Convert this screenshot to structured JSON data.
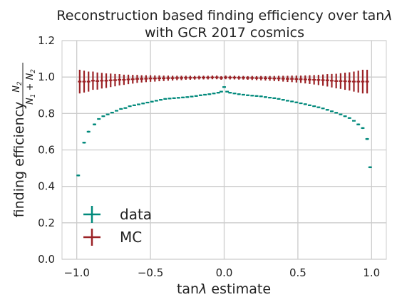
{
  "chart_data": {
    "type": "scatter",
    "title_line1_prefix": "Reconstruction based finding efficiency over tan",
    "title_line1_symbol": "λ",
    "title_line2": "with GCR 2017 cosmics",
    "xlabel_prefix": "tan",
    "xlabel_symbol": "λ",
    "xlabel_suffix": " estimate",
    "ylabel_text": "finding efficiency",
    "ylabel_num": "N",
    "ylabel_num_sub": "2",
    "ylabel_den_n1": "N",
    "ylabel_den_n1_sub": "1",
    "ylabel_den_plus": " + ",
    "ylabel_den_n2": "N",
    "ylabel_den_n2_sub": "2",
    "xlim": [
      -1.1,
      1.1
    ],
    "ylim": [
      0.0,
      1.2
    ],
    "xticks": [
      -1.0,
      -0.5,
      0.0,
      0.5,
      1.0
    ],
    "xtick_labels": [
      "−1.0",
      "−0.5",
      "0.0",
      "0.5",
      "1.0"
    ],
    "yticks": [
      0.0,
      0.2,
      0.4,
      0.6,
      0.8,
      1.0,
      1.2
    ],
    "ytick_labels": [
      "0.0",
      "0.2",
      "0.4",
      "0.6",
      "0.8",
      "1.0",
      "1.2"
    ],
    "grid": true,
    "legend_position": "lower-left",
    "series": [
      {
        "name": "data",
        "color": "#00897b",
        "marker": "errorbar",
        "x": [
          -0.99,
          -0.95,
          -0.92,
          -0.88,
          -0.85,
          -0.82,
          -0.79,
          -0.76,
          -0.73,
          -0.7,
          -0.67,
          -0.64,
          -0.61,
          -0.58,
          -0.55,
          -0.52,
          -0.49,
          -0.46,
          -0.43,
          -0.4,
          -0.37,
          -0.34,
          -0.31,
          -0.28,
          -0.25,
          -0.22,
          -0.19,
          -0.16,
          -0.13,
          -0.1,
          -0.07,
          -0.04,
          -0.02,
          0.0,
          0.02,
          0.04,
          0.07,
          0.1,
          0.13,
          0.16,
          0.19,
          0.22,
          0.25,
          0.28,
          0.31,
          0.34,
          0.37,
          0.4,
          0.43,
          0.46,
          0.49,
          0.52,
          0.55,
          0.58,
          0.61,
          0.64,
          0.67,
          0.7,
          0.73,
          0.76,
          0.79,
          0.82,
          0.85,
          0.88,
          0.91,
          0.94,
          0.97,
          0.99
        ],
        "y": [
          0.46,
          0.64,
          0.7,
          0.74,
          0.77,
          0.785,
          0.795,
          0.805,
          0.815,
          0.825,
          0.83,
          0.84,
          0.845,
          0.85,
          0.855,
          0.86,
          0.865,
          0.87,
          0.875,
          0.88,
          0.882,
          0.884,
          0.886,
          0.888,
          0.89,
          0.893,
          0.896,
          0.9,
          0.903,
          0.906,
          0.91,
          0.914,
          0.92,
          0.945,
          0.92,
          0.914,
          0.91,
          0.906,
          0.903,
          0.9,
          0.898,
          0.896,
          0.894,
          0.89,
          0.887,
          0.884,
          0.88,
          0.875,
          0.87,
          0.866,
          0.861,
          0.856,
          0.851,
          0.845,
          0.84,
          0.834,
          0.828,
          0.82,
          0.812,
          0.804,
          0.795,
          0.785,
          0.775,
          0.76,
          0.74,
          0.72,
          0.66,
          0.505
        ],
        "yerr": [
          0.005,
          0.005,
          0.005,
          0.005,
          0.004,
          0.004,
          0.004,
          0.004,
          0.004,
          0.004,
          0.004,
          0.004,
          0.004,
          0.004,
          0.004,
          0.004,
          0.004,
          0.004,
          0.004,
          0.004,
          0.004,
          0.004,
          0.004,
          0.004,
          0.004,
          0.004,
          0.004,
          0.004,
          0.004,
          0.004,
          0.004,
          0.004,
          0.004,
          0.004,
          0.004,
          0.004,
          0.004,
          0.004,
          0.004,
          0.004,
          0.004,
          0.004,
          0.004,
          0.004,
          0.004,
          0.004,
          0.004,
          0.004,
          0.004,
          0.004,
          0.004,
          0.004,
          0.004,
          0.004,
          0.004,
          0.004,
          0.004,
          0.004,
          0.004,
          0.004,
          0.004,
          0.004,
          0.004,
          0.004,
          0.005,
          0.005,
          0.005,
          0.005
        ],
        "xerr": 0.012
      },
      {
        "name": "MC",
        "color": "#9b2226",
        "marker": "errorbar",
        "x": [
          -0.98,
          -0.95,
          -0.92,
          -0.89,
          -0.86,
          -0.83,
          -0.8,
          -0.77,
          -0.74,
          -0.71,
          -0.68,
          -0.65,
          -0.62,
          -0.59,
          -0.56,
          -0.53,
          -0.5,
          -0.47,
          -0.44,
          -0.41,
          -0.38,
          -0.35,
          -0.32,
          -0.29,
          -0.26,
          -0.23,
          -0.2,
          -0.17,
          -0.14,
          -0.11,
          -0.08,
          -0.05,
          -0.02,
          0.01,
          0.04,
          0.07,
          0.1,
          0.13,
          0.16,
          0.19,
          0.22,
          0.25,
          0.28,
          0.31,
          0.34,
          0.37,
          0.4,
          0.43,
          0.46,
          0.49,
          0.52,
          0.55,
          0.58,
          0.61,
          0.64,
          0.67,
          0.7,
          0.73,
          0.76,
          0.79,
          0.82,
          0.85,
          0.88,
          0.91,
          0.94,
          0.97
        ],
        "y": [
          0.975,
          0.975,
          0.975,
          0.98,
          0.978,
          0.98,
          0.98,
          0.982,
          0.983,
          0.985,
          0.985,
          0.987,
          0.988,
          0.99,
          0.99,
          0.991,
          0.992,
          0.992,
          0.993,
          0.993,
          0.994,
          0.994,
          0.995,
          0.995,
          0.996,
          0.996,
          0.996,
          0.997,
          0.997,
          0.997,
          0.998,
          0.998,
          0.995,
          0.998,
          0.997,
          0.997,
          0.996,
          0.996,
          0.995,
          0.995,
          0.994,
          0.994,
          0.993,
          0.993,
          0.992,
          0.992,
          0.991,
          0.99,
          0.99,
          0.989,
          0.988,
          0.987,
          0.986,
          0.985,
          0.984,
          0.983,
          0.982,
          0.98,
          0.978,
          0.978,
          0.977,
          0.976,
          0.975,
          0.975,
          0.975,
          0.975
        ],
        "yerr": [
          0.065,
          0.06,
          0.055,
          0.05,
          0.047,
          0.043,
          0.04,
          0.037,
          0.034,
          0.031,
          0.028,
          0.026,
          0.024,
          0.022,
          0.02,
          0.019,
          0.018,
          0.017,
          0.016,
          0.015,
          0.014,
          0.013,
          0.012,
          0.012,
          0.011,
          0.011,
          0.01,
          0.01,
          0.01,
          0.01,
          0.01,
          0.01,
          0.01,
          0.01,
          0.01,
          0.01,
          0.01,
          0.01,
          0.01,
          0.011,
          0.011,
          0.012,
          0.012,
          0.013,
          0.014,
          0.015,
          0.016,
          0.017,
          0.018,
          0.019,
          0.02,
          0.022,
          0.024,
          0.026,
          0.028,
          0.031,
          0.034,
          0.037,
          0.04,
          0.043,
          0.047,
          0.05,
          0.055,
          0.06,
          0.065,
          0.065
        ],
        "xerr": 0.012
      }
    ]
  }
}
